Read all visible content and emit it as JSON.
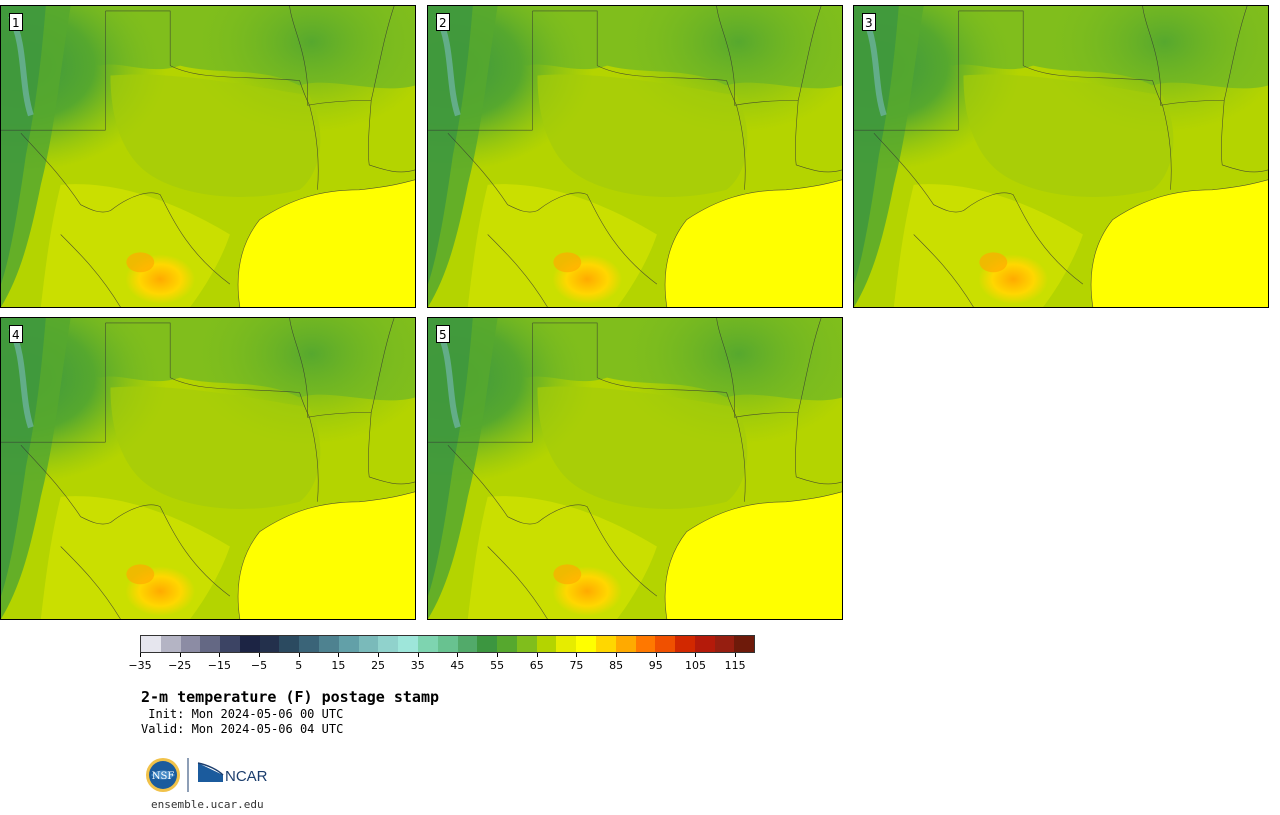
{
  "title": "2-m temperature (F) postage stamp",
  "init_line": " Init: Mon 2024-05-06 00 UTC",
  "valid_line": "Valid: Mon 2024-05-06 04 UTC",
  "footer_url": "ensemble.ucar.edu",
  "logos": {
    "nsf_text": "NSF",
    "ncar_text": "NCAR"
  },
  "members": [
    {
      "label": "1",
      "hot_spot_level": 0.55
    },
    {
      "label": "2",
      "hot_spot_level": 0.7
    },
    {
      "label": "3",
      "hot_spot_level": 0.85
    },
    {
      "label": "4",
      "hot_spot_level": 0.5
    },
    {
      "label": "5",
      "hot_spot_level": 0.65
    }
  ],
  "colorbar": {
    "tick_labels": [
      "−35",
      "−25",
      "−15",
      "−5",
      "5",
      "15",
      "25",
      "35",
      "45",
      "55",
      "65",
      "75",
      "85",
      "95",
      "105",
      "115"
    ],
    "colors": [
      "#e6e6ee",
      "#b4b4c4",
      "#8c8ca4",
      "#646884",
      "#3c4464",
      "#1c2444",
      "#23304c",
      "#2b4a60",
      "#3a6478",
      "#4e8290",
      "#62a0a8",
      "#7ababa",
      "#90d2cc",
      "#9ee6da",
      "#7ed4b0",
      "#68c290",
      "#52aa6a",
      "#3c9640",
      "#56a82e",
      "#80be1c",
      "#b4d400",
      "#e6ec00",
      "#ffff00",
      "#ffd700",
      "#ffaa00",
      "#ff7800",
      "#f05000",
      "#d22800",
      "#b41a0a",
      "#961e10",
      "#6e1a0a"
    ]
  }
}
